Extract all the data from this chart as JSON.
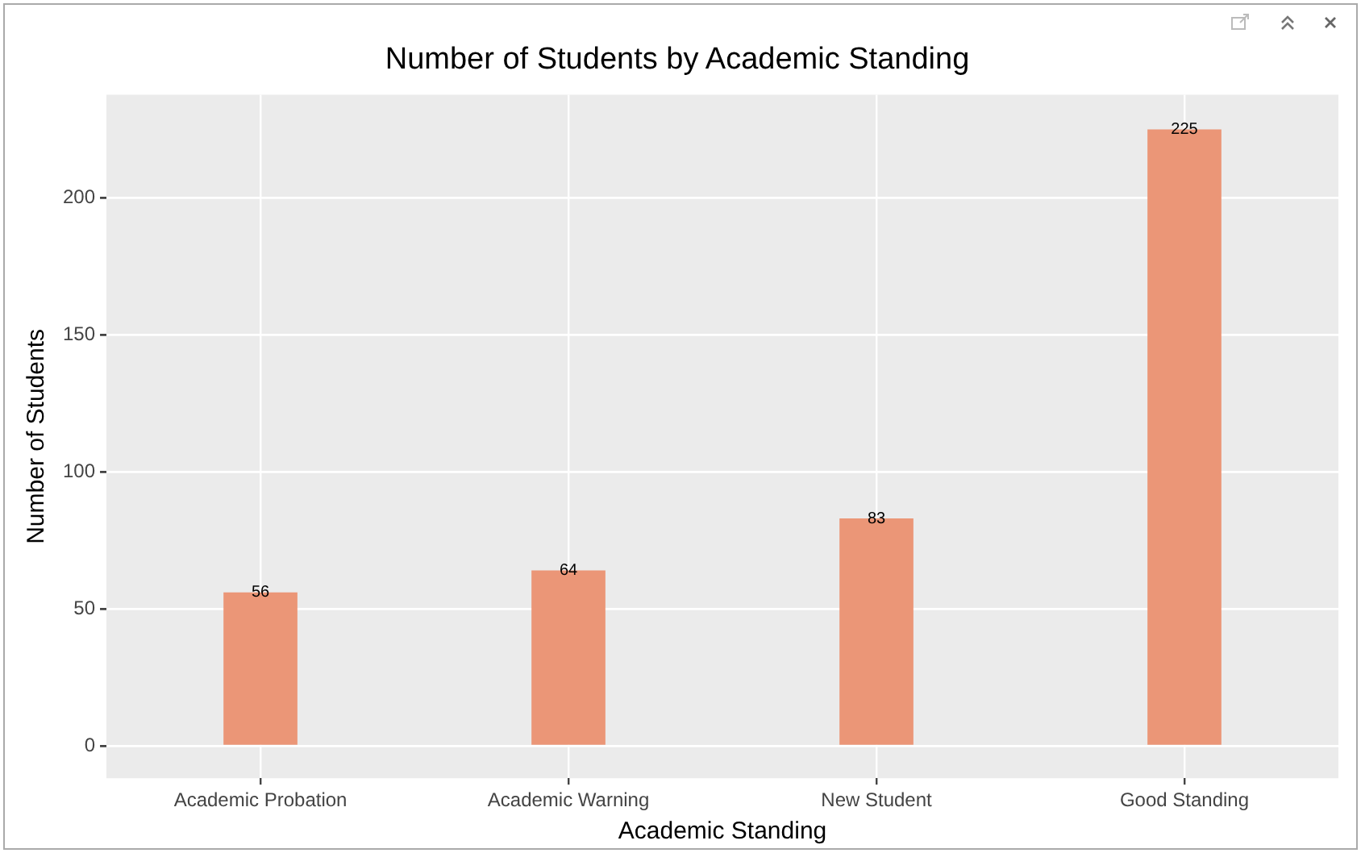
{
  "chart_data": {
    "type": "bar",
    "title": "Number of Students by Academic Standing",
    "xlabel": "Academic Standing",
    "ylabel": "Number of Students",
    "categories": [
      "Academic Probation",
      "Academic Warning",
      "New Student",
      "Good Standing"
    ],
    "values": [
      56,
      64,
      83,
      225
    ],
    "color": "#eb9677",
    "ylim": [
      -11.8,
      237.6
    ],
    "yticks": [
      0,
      50,
      100,
      150,
      200
    ],
    "grid": true,
    "data_labels": true
  }
}
